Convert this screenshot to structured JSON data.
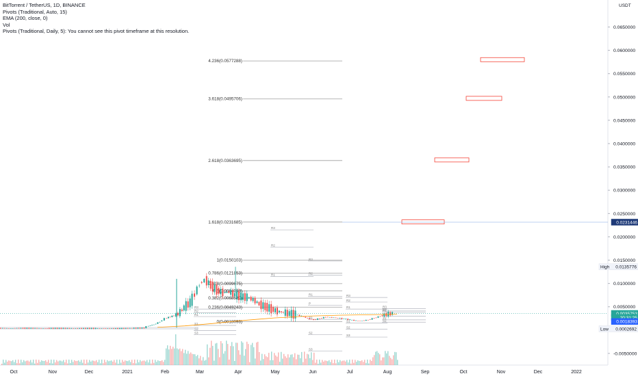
{
  "legend": {
    "title": "BitTorrent / TetherUS, 1D, BINANCE",
    "lines": [
      "Pivots (Traditional, Auto, 15)",
      "EMA (200, close, 0)",
      "Vol",
      "Pivots (Traditional, Daily, 5): You cannot see this pivot timeframe at this resolution."
    ]
  },
  "currency": "USDT",
  "colors": {
    "up": "#26a69a",
    "down": "#ef5350",
    "axis_text": "#131722",
    "grid": "#f0f3fa",
    "fib": "#9e9e9e",
    "price_box": "#2962ff",
    "dark_box": "#1e3a78",
    "target_box": "#f44336"
  },
  "chart_data": {
    "type": "candlestick",
    "symbol": "BTTUSDT",
    "exchange": "BINANCE",
    "interval": "1D",
    "x_ticks": [
      "Oct",
      "Nov",
      "Dec",
      "2021",
      "Feb",
      "Mar",
      "Apr",
      "May",
      "Jun",
      "Jul",
      "Aug",
      "Sep",
      "Oct",
      "Nov",
      "Dec",
      "2022"
    ],
    "y_ticks": [
      "0.0650000",
      "0.0600000",
      "0.0550000",
      "0.0500000",
      "0.0450000",
      "0.0400000",
      "0.0350000",
      "0.0300000",
      "0.0250000",
      "0.0200000",
      "0.0150000",
      "0.0100000",
      "0.0050000",
      "-0.0050000"
    ],
    "ylim": [
      -0.0075,
      0.0705
    ],
    "fib_levels": [
      {
        "label": "4.236(0.0577288)",
        "value": 0.0577288
      },
      {
        "label": "3.618(0.0495706)",
        "value": 0.0495706
      },
      {
        "label": "2.618(0.0363695)",
        "value": 0.0363695
      },
      {
        "label": "1.618(0.0231685)",
        "value": 0.0231685
      },
      {
        "label": "1(0.0150103)",
        "value": 0.0150103
      },
      {
        "label": "0.786(0.0121853)",
        "value": 0.0121853
      },
      {
        "label": "0.618(0.0099675)",
        "value": 0.0099675
      },
      {
        "label": "0.5(0.0084098)",
        "value": 0.0084098
      },
      {
        "label": "0.382(0.0068520)",
        "value": 0.006852
      },
      {
        "label": "0.236(0.0049243)",
        "value": 0.0049243
      },
      {
        "label": "0(0.0018093)",
        "value": 0.0018093
      }
    ],
    "target_boxes": [
      0.058,
      0.0497,
      0.0365,
      0.0232
    ],
    "price_labels": [
      {
        "label": "",
        "value": "0.0231446",
        "y": 0.0231446,
        "style": "blue"
      },
      {
        "label": "High",
        "value": "0.0135776",
        "y": 0.0135776,
        "style": "light"
      },
      {
        "label": "",
        "value": "0.0035753",
        "y": 0.0035753,
        "style": "teal"
      },
      {
        "label": "",
        "value": "20:31:25",
        "y": 0.0027,
        "style": "teal"
      },
      {
        "label": "",
        "value": "0.0018393",
        "y": 0.0018393,
        "style": "dark"
      },
      {
        "label": "Low",
        "value": "0.0002692",
        "y": 0.0002692,
        "style": "light"
      }
    ],
    "price_path": [
      [
        0,
        0.0004
      ],
      [
        20,
        0.0004
      ],
      [
        40,
        0.00038
      ],
      [
        60,
        0.00037
      ],
      [
        80,
        0.00036
      ],
      [
        100,
        0.00035
      ],
      [
        110,
        0.0004
      ],
      [
        120,
        0.00045
      ],
      [
        122,
        0.0008
      ],
      [
        128,
        0.0012
      ],
      [
        133,
        0.0018
      ],
      [
        137,
        0.0025
      ],
      [
        143,
        0.003
      ],
      [
        148,
        0.0035
      ],
      [
        153,
        0.005
      ],
      [
        158,
        0.006
      ],
      [
        162,
        0.008
      ],
      [
        166,
        0.01
      ],
      [
        170,
        0.0108
      ],
      [
        175,
        0.0095
      ],
      [
        180,
        0.0085
      ],
      [
        185,
        0.008
      ],
      [
        190,
        0.0082
      ],
      [
        195,
        0.0075
      ],
      [
        200,
        0.0072
      ],
      [
        205,
        0.007
      ],
      [
        210,
        0.0065
      ],
      [
        215,
        0.0055
      ],
      [
        220,
        0.005
      ],
      [
        225,
        0.0045
      ],
      [
        230,
        0.004
      ],
      [
        235,
        0.0038
      ],
      [
        240,
        0.0035
      ],
      [
        245,
        0.0033
      ],
      [
        250,
        0.003
      ],
      [
        255,
        0.0025
      ],
      [
        260,
        0.0022
      ],
      [
        265,
        0.0025
      ],
      [
        270,
        0.0028
      ],
      [
        275,
        0.0027
      ],
      [
        280,
        0.0026
      ],
      [
        285,
        0.0024
      ],
      [
        290,
        0.0022
      ],
      [
        295,
        0.002
      ],
      [
        300,
        0.002
      ],
      [
        305,
        0.0022
      ],
      [
        310,
        0.0026
      ],
      [
        315,
        0.003
      ],
      [
        320,
        0.0034
      ],
      [
        325,
        0.0036
      ]
    ]
  },
  "pivots": {
    "r3": "R3",
    "r2": "R2",
    "r1": "R1",
    "p": "P",
    "s1": "S1",
    "s2": "S2",
    "s3": "S3"
  }
}
